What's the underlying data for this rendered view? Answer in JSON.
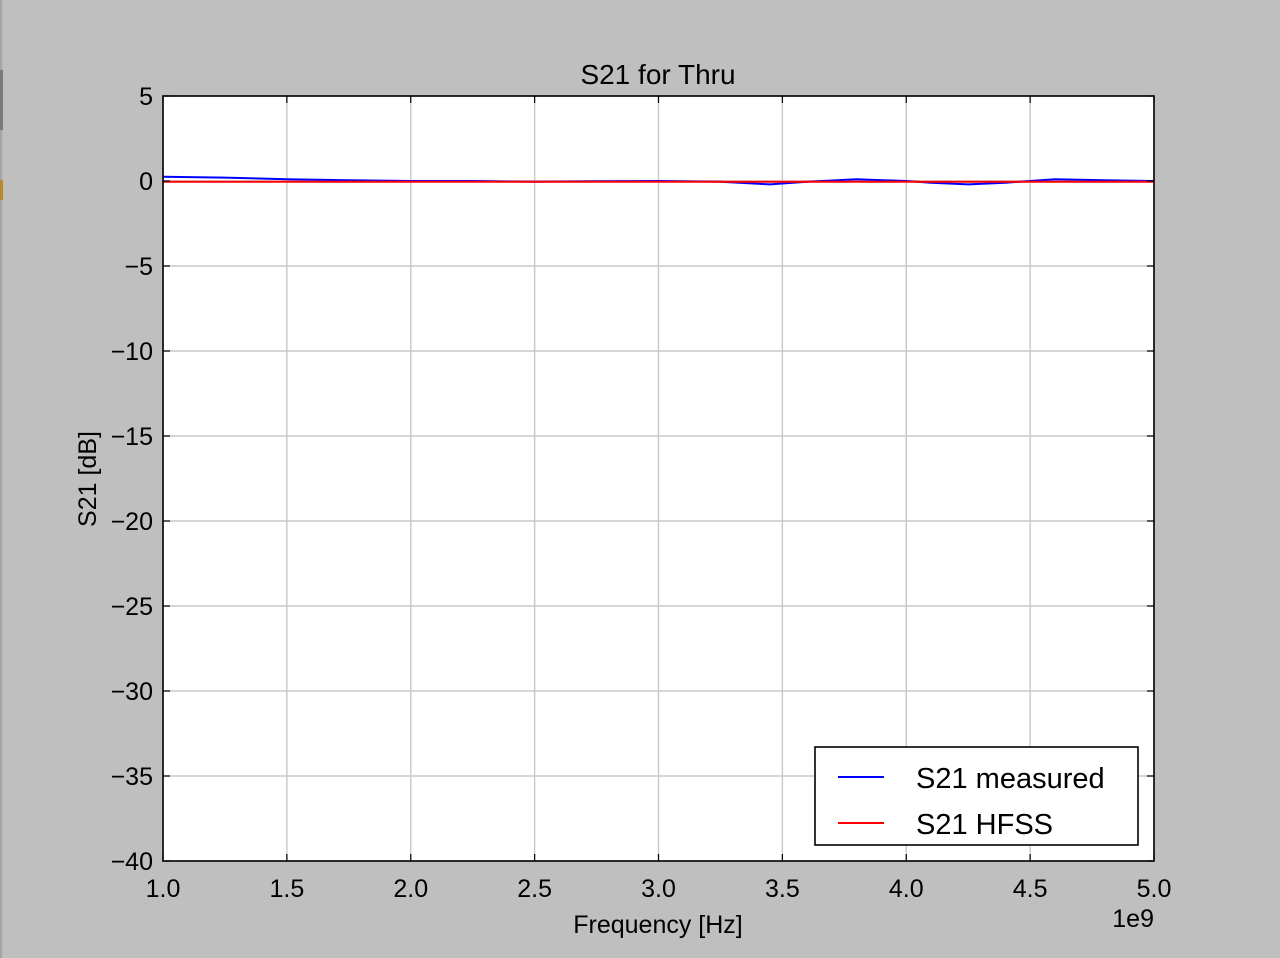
{
  "chart_data": {
    "type": "line",
    "title": "S21 for Thru",
    "xlabel": "Frequency [Hz]",
    "ylabel": "S21 [dB]",
    "x_offset_label": "1e9",
    "xlim": [
      1.0,
      5.0
    ],
    "ylim": [
      -40,
      5
    ],
    "x_ticks": [
      "1.0",
      "1.5",
      "2.0",
      "2.5",
      "3.0",
      "3.5",
      "4.0",
      "4.5",
      "5.0"
    ],
    "y_ticks": [
      "5",
      "0",
      "−5",
      "−10",
      "−15",
      "−20",
      "−25",
      "−30",
      "−35",
      "−40"
    ],
    "grid": true,
    "legend_position": "bottom-right",
    "series": [
      {
        "name": "S21 measured",
        "color": "#0000ff",
        "x": [
          1.0,
          1.25,
          1.5,
          1.75,
          2.0,
          2.25,
          2.5,
          2.75,
          3.0,
          3.25,
          3.45,
          3.6,
          3.8,
          4.0,
          4.1,
          4.25,
          4.4,
          4.6,
          4.8,
          5.0
        ],
        "y": [
          0.25,
          0.2,
          0.1,
          0.05,
          0.0,
          0.0,
          -0.05,
          -0.02,
          0.0,
          -0.05,
          -0.2,
          -0.05,
          0.1,
          0.0,
          -0.1,
          -0.2,
          -0.1,
          0.1,
          0.05,
          0.0
        ]
      },
      {
        "name": "S21 HFSS",
        "color": "#ff0000",
        "x": [
          1.0,
          1.5,
          2.0,
          2.5,
          3.0,
          3.5,
          4.0,
          4.5,
          5.0
        ],
        "y": [
          -0.05,
          -0.05,
          -0.05,
          -0.05,
          -0.05,
          -0.05,
          -0.05,
          -0.05,
          -0.05
        ]
      }
    ]
  }
}
